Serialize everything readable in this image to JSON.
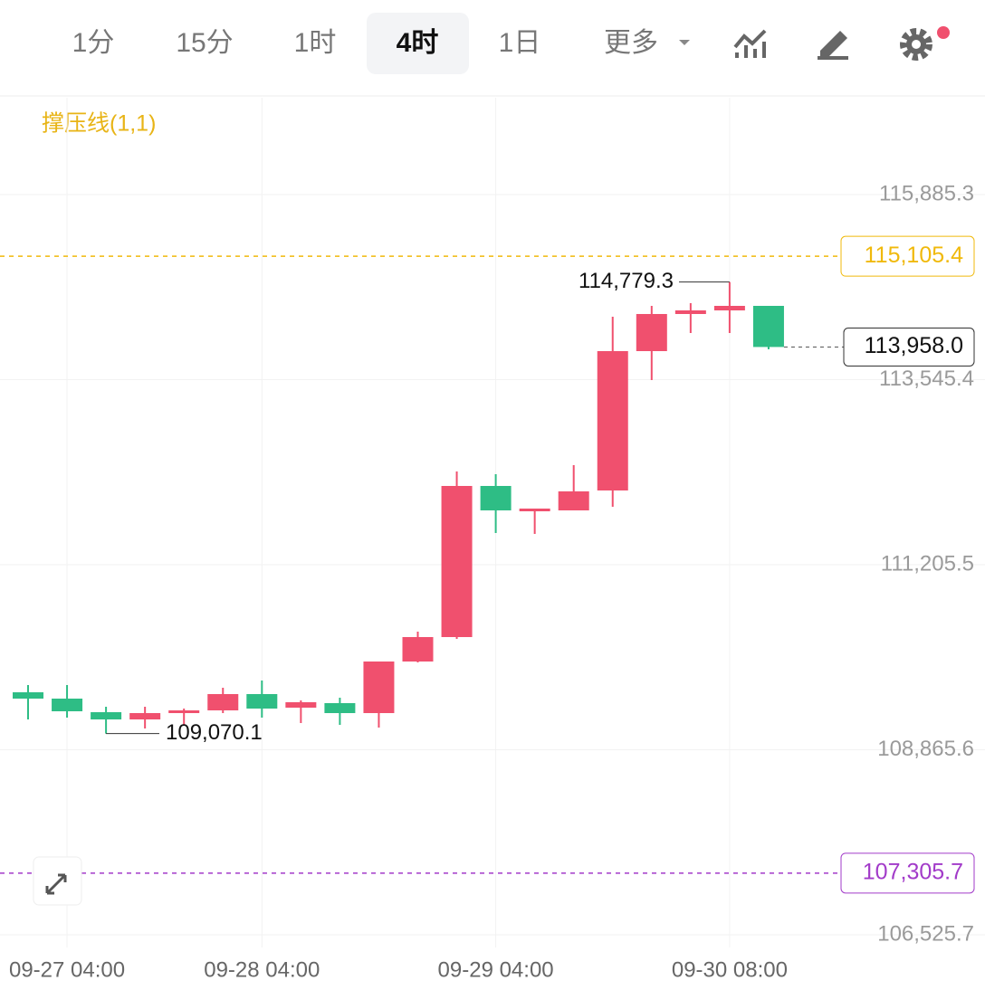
{
  "toolbar": {
    "tabs": [
      "1分",
      "15分",
      "1时",
      "4时",
      "1日",
      "更多"
    ],
    "active": 3
  },
  "chart_data": {
    "type": "candlestick",
    "indicator": "撑压线(1,1)",
    "categories": [
      null,
      "09-27 04:00",
      null,
      null,
      null,
      null,
      "09-28 04:00",
      null,
      null,
      null,
      null,
      null,
      "09-29 04:00",
      null,
      null,
      null,
      null,
      null,
      "09-30 08:00",
      null
    ],
    "open": [
      109592.2,
      109512.1,
      109340.5,
      109248.9,
      109329.0,
      109363.4,
      109569.3,
      109397.7,
      109454.9,
      109329.0,
      109981.2,
      110290.2,
      112201.0,
      111880.6,
      111892.0,
      112143.8,
      113905.8,
      114375.0,
      114420.7,
      114477.9
    ],
    "high": [
      109683.7,
      109683.7,
      109409.1,
      109409.1,
      109386.2,
      109649.4,
      109740.9,
      109489.2,
      109523.5,
      109981.2,
      110358.8,
      112384.0,
      112349.7,
      111914.9,
      112464.1,
      114340.6,
      114477.9,
      114512.3,
      114779.3,
      114477.9
    ],
    "low": [
      109248.9,
      109271.8,
      109070.1,
      109134.5,
      109180.3,
      109329.0,
      109271.8,
      109203.2,
      109180.3,
      109146.0,
      109969.8,
      110267.3,
      111606.0,
      111594.5,
      111892.0,
      111937.8,
      113539.7,
      114134.7,
      114134.7,
      113928.7
    ],
    "close": [
      109512.1,
      109351.9,
      109248.9,
      109329.0,
      109363.4,
      109569.3,
      109386.2,
      109466.3,
      109329.0,
      109981.2,
      110290.2,
      112201.0,
      111892.0,
      111914.9,
      112132.3,
      113905.8,
      114375.0,
      114420.7,
      114477.9,
      113958.0
    ],
    "up_color": "#f0506e",
    "down_color": "#2ebd85",
    "ylim": [
      106365.6,
      117109.6
    ],
    "yticks": [
      {
        "value": 106525.7,
        "label": "106,525.7"
      },
      {
        "value": 108865.6,
        "label": "108,865.6"
      },
      {
        "value": 111205.5,
        "label": "111,205.5"
      },
      {
        "value": 113545.4,
        "label": "113,545.4"
      },
      {
        "value": 115885.3,
        "label": "115,885.3"
      }
    ],
    "grid": true,
    "levels": [
      {
        "value": 115105.4,
        "label": "115,105.4",
        "color": "#f0b90b"
      },
      {
        "value": 107305.7,
        "label": "107,305.7",
        "color": "#a23bc9"
      }
    ],
    "last_price": {
      "value": 113958.0,
      "label": "113,958.0"
    },
    "high_mark": {
      "value": 114779.3,
      "label": "114,779.3"
    },
    "low_mark": {
      "value": 109070.1,
      "label": "109,070.1"
    }
  }
}
